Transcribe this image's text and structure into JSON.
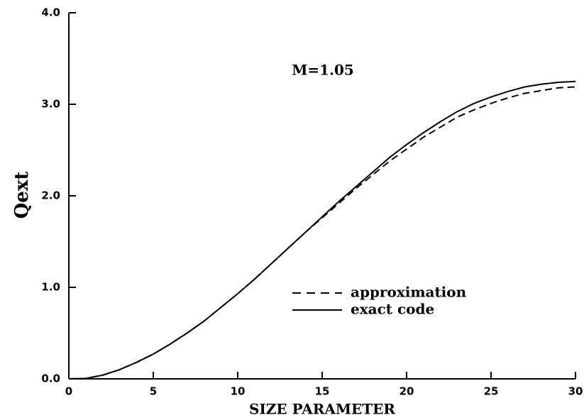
{
  "chart_data": {
    "type": "line",
    "annotation": "M=1.05",
    "xlabel": "SIZE PARAMETER",
    "ylabel": "Qext",
    "x": [
      0,
      1,
      2,
      3,
      4,
      5,
      6,
      7,
      8,
      9,
      10,
      11,
      12,
      13,
      14,
      15,
      16,
      17,
      18,
      19,
      20,
      21,
      22,
      23,
      24,
      25,
      26,
      27,
      28,
      29,
      30
    ],
    "series": [
      {
        "name": "approximation",
        "color": "#000000",
        "dash": true,
        "values": [
          0,
          0.005,
          0.04,
          0.1,
          0.18,
          0.27,
          0.38,
          0.5,
          0.63,
          0.78,
          0.93,
          1.09,
          1.26,
          1.43,
          1.6,
          1.76,
          1.92,
          2.08,
          2.23,
          2.38,
          2.51,
          2.64,
          2.75,
          2.86,
          2.94,
          3.01,
          3.07,
          3.12,
          3.15,
          3.18,
          3.19
        ]
      },
      {
        "name": "exact code",
        "color": "#000000",
        "dash": false,
        "values": [
          0,
          0.005,
          0.04,
          0.1,
          0.18,
          0.27,
          0.38,
          0.5,
          0.63,
          0.78,
          0.93,
          1.09,
          1.26,
          1.43,
          1.6,
          1.77,
          1.94,
          2.1,
          2.26,
          2.42,
          2.56,
          2.69,
          2.81,
          2.92,
          3.01,
          3.08,
          3.14,
          3.19,
          3.22,
          3.24,
          3.25
        ]
      }
    ],
    "xlim": [
      0,
      30
    ],
    "xticks": [
      0,
      5,
      10,
      15,
      20,
      25,
      30
    ],
    "ylim": [
      0,
      4
    ],
    "yticks": [
      {
        "value": 0,
        "label": "0.0"
      },
      {
        "value": 1,
        "label": "1.0"
      },
      {
        "value": 2,
        "label": "2.0"
      },
      {
        "value": 3,
        "label": "3.0"
      },
      {
        "value": 4,
        "label": "4.0"
      }
    ],
    "legend": "lower right",
    "grid": false
  }
}
